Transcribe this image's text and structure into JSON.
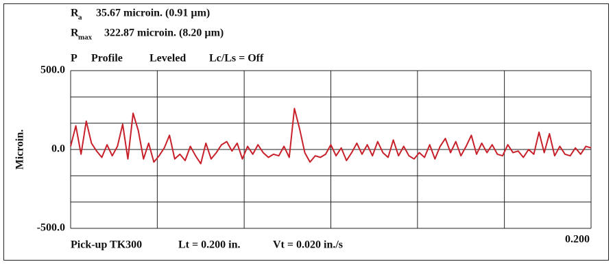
{
  "chart_data": {
    "type": "line",
    "header": {
      "ra_symbol": "R",
      "ra_sub": "a",
      "ra_value": "35.67 microin. (0.91 µm)",
      "rmax_symbol": "R",
      "rmax_sub": "max",
      "rmax_value": "322.87 microin. (8.20 µm)",
      "profile": [
        "P",
        "Profile",
        "Leveled",
        "Lc/Ls = Off"
      ]
    },
    "footer": [
      "Pick-up TK300",
      "Lt = 0.200 in.",
      "Vt = 0.020 in./s"
    ],
    "ylabel": "Microin.",
    "xlim": [
      0,
      0.2
    ],
    "ylim": [
      -500,
      500
    ],
    "xticks": [
      {
        "value": 0.2,
        "label": "0.200"
      }
    ],
    "yticks": [
      {
        "value": 500,
        "label": "500.0"
      },
      {
        "value": 0,
        "label": "0.0"
      },
      {
        "value": -500,
        "label": "-500.0"
      }
    ],
    "xgrid": [
      0,
      0.0333,
      0.0667,
      0.1,
      0.1333,
      0.1667,
      0.2
    ],
    "ygrid": [
      -500,
      -333.3,
      -166.7,
      0,
      166.7,
      333.3,
      500
    ],
    "grid": true,
    "x": [
      0,
      0.002,
      0.004,
      0.006,
      0.008,
      0.01,
      0.012,
      0.014,
      0.016,
      0.018,
      0.02,
      0.022,
      0.024,
      0.026,
      0.028,
      0.03,
      0.032,
      0.034,
      0.036,
      0.038,
      0.04,
      0.042,
      0.044,
      0.046,
      0.048,
      0.05,
      0.052,
      0.054,
      0.056,
      0.058,
      0.06,
      0.062,
      0.064,
      0.066,
      0.068,
      0.07,
      0.072,
      0.074,
      0.076,
      0.078,
      0.08,
      0.082,
      0.084,
      0.086,
      0.088,
      0.09,
      0.092,
      0.094,
      0.096,
      0.098,
      0.1,
      0.102,
      0.104,
      0.106,
      0.108,
      0.11,
      0.112,
      0.114,
      0.116,
      0.118,
      0.12,
      0.122,
      0.124,
      0.126,
      0.128,
      0.13,
      0.132,
      0.134,
      0.136,
      0.138,
      0.14,
      0.142,
      0.144,
      0.146,
      0.148,
      0.15,
      0.152,
      0.154,
      0.156,
      0.158,
      0.16,
      0.162,
      0.164,
      0.166,
      0.168,
      0.17,
      0.172,
      0.174,
      0.176,
      0.178,
      0.18,
      0.182,
      0.184,
      0.186,
      0.188,
      0.19,
      0.192,
      0.194,
      0.196,
      0.198,
      0.2
    ],
    "series": [
      {
        "color": "#c8202a",
        "values": [
          20,
          150,
          -30,
          180,
          40,
          -10,
          -50,
          30,
          -40,
          20,
          160,
          -60,
          230,
          120,
          -60,
          40,
          -80,
          -40,
          10,
          90,
          -60,
          -30,
          -70,
          20,
          -40,
          -90,
          40,
          -60,
          -20,
          30,
          50,
          -10,
          40,
          -60,
          20,
          -30,
          30,
          -20,
          -50,
          -30,
          -40,
          20,
          -50,
          260,
          130,
          -20,
          -80,
          -40,
          -50,
          -30,
          30,
          -40,
          10,
          -70,
          -20,
          40,
          -30,
          30,
          -40,
          50,
          -20,
          -50,
          60,
          -40,
          20,
          -40,
          -60,
          -20,
          -50,
          30,
          -60,
          20,
          70,
          -20,
          50,
          -40,
          20,
          90,
          -30,
          40,
          -20,
          30,
          -30,
          -40,
          30,
          -20,
          -10,
          -50,
          0,
          -30,
          110,
          -20,
          100,
          -40,
          20,
          -30,
          -40,
          10,
          -30,
          20,
          10
        ]
      }
    ]
  }
}
